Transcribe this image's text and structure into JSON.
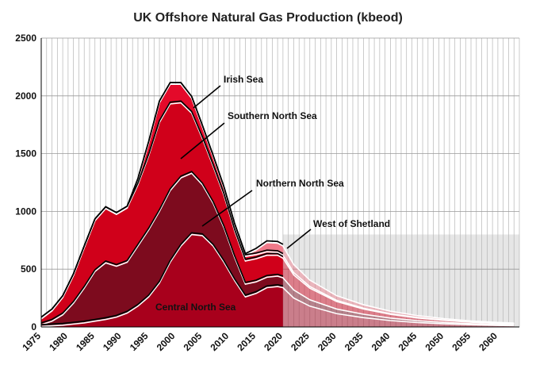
{
  "chart_data": {
    "type": "area",
    "title": "UK Offshore Natural Gas Production (kbeod)",
    "xlabel": "",
    "ylabel": "",
    "xlim": [
      1975,
      2064
    ],
    "ylim": [
      0,
      2500
    ],
    "historical_end": 2020,
    "grid": true,
    "x_ticks": [
      1975,
      1980,
      1985,
      1990,
      1995,
      2000,
      2005,
      2010,
      2015,
      2020,
      2025,
      2030,
      2035,
      2040,
      2045,
      2050,
      2055,
      2060
    ],
    "y_ticks": [
      0,
      500,
      1000,
      1500,
      2000,
      2500
    ],
    "x": [
      1975,
      1977,
      1979,
      1981,
      1983,
      1985,
      1987,
      1989,
      1991,
      1993,
      1995,
      1997,
      1999,
      2001,
      2003,
      2005,
      2007,
      2009,
      2011,
      2013,
      2015,
      2017,
      2019,
      2020,
      2022,
      2025,
      2030,
      2035,
      2040,
      2045,
      2050,
      2055,
      2060,
      2063
    ],
    "series": [
      {
        "name": "Central North Sea",
        "values": [
          5,
          10,
          15,
          25,
          35,
          50,
          65,
          85,
          120,
          180,
          260,
          380,
          560,
          700,
          800,
          790,
          700,
          560,
          400,
          260,
          290,
          340,
          350,
          340,
          250,
          180,
          115,
          80,
          55,
          38,
          27,
          19,
          13,
          11
        ]
      },
      {
        "name": "Northern North Sea",
        "values": [
          15,
          40,
          90,
          180,
          300,
          430,
          490,
          440,
          440,
          520,
          580,
          620,
          620,
          590,
          530,
          440,
          370,
          300,
          200,
          110,
          100,
          90,
          90,
          85,
          70,
          55,
          40,
          30,
          22,
          16,
          12,
          9,
          7,
          6
        ]
      },
      {
        "name": "Southern North Sea",
        "values": [
          50,
          90,
          150,
          240,
          350,
          440,
          470,
          450,
          470,
          530,
          640,
          770,
          750,
          650,
          520,
          400,
          320,
          280,
          230,
          200,
          200,
          190,
          180,
          170,
          130,
          100,
          65,
          45,
          32,
          24,
          18,
          13,
          10,
          9
        ]
      },
      {
        "name": "Irish Sea",
        "values": [
          0,
          0,
          0,
          0,
          0,
          0,
          0,
          0,
          0,
          40,
          110,
          170,
          170,
          160,
          130,
          100,
          80,
          60,
          50,
          40,
          35,
          30,
          25,
          25,
          20,
          15,
          10,
          7,
          5,
          4,
          3,
          2,
          2,
          2
        ]
      },
      {
        "name": "West of Shetland",
        "values": [
          0,
          0,
          0,
          0,
          0,
          0,
          0,
          0,
          0,
          0,
          0,
          0,
          0,
          0,
          0,
          0,
          0,
          0,
          0,
          10,
          40,
          80,
          80,
          80,
          70,
          55,
          40,
          30,
          22,
          16,
          12,
          9,
          7,
          6
        ]
      }
    ],
    "annotations": [
      "Irish Sea",
      "Southern North Sea",
      "Northern North Sea",
      "West of Shetland",
      "Central North Sea"
    ],
    "colors": {
      "Central North Sea": "#a8001c",
      "Northern North Sea": "#7d0b1e",
      "Southern North Sea": "#d0001a",
      "Irish Sea": "#e40a2a",
      "West of Shetland": "#f07a8a",
      "forecast_band": "#e6e6e6",
      "grid": "#b5b5b5"
    }
  }
}
